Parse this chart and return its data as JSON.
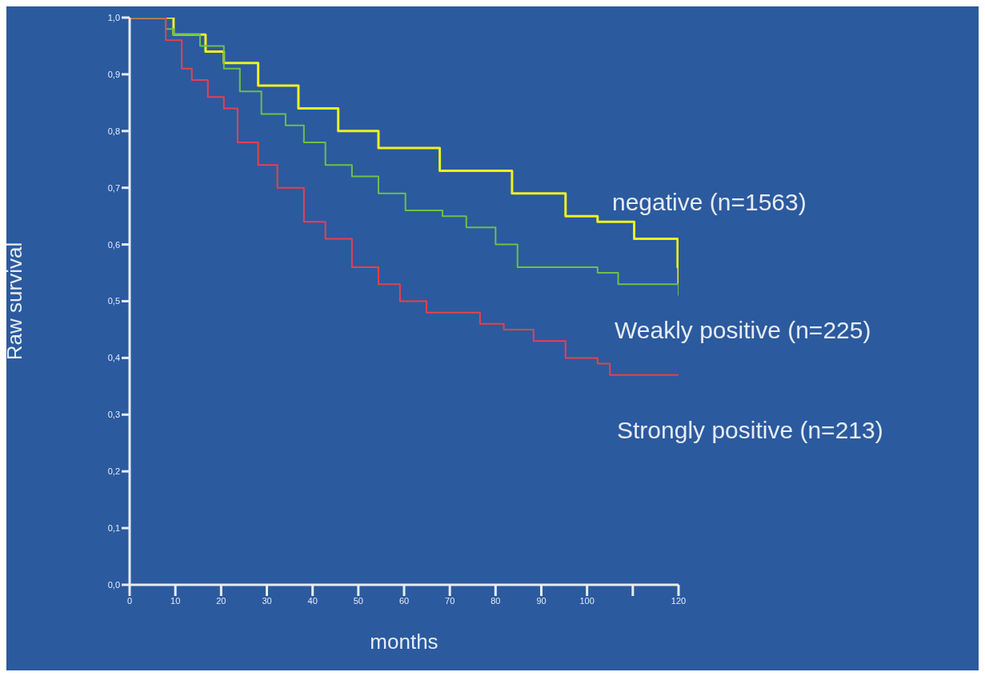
{
  "chart_data": {
    "type": "step",
    "xlabel": "months",
    "ylabel": "Raw survival",
    "xlim": [
      0,
      120
    ],
    "ylim": [
      0,
      1
    ],
    "xticks": [
      0,
      10,
      20,
      30,
      40,
      50,
      60,
      70,
      80,
      90,
      100,
      {
        "value": 110,
        "label": null
      },
      120
    ],
    "yticks": [
      {
        "value": 0,
        "label": "0,0"
      },
      {
        "value": 0.1,
        "label": "0,1"
      },
      {
        "value": 0.2,
        "label": "0,2"
      },
      {
        "value": 0.3,
        "label": "0,3"
      },
      {
        "value": 0.4,
        "label": "0,4"
      },
      {
        "value": 0.5,
        "label": "0,5"
      },
      {
        "value": 0.6,
        "label": "0,6"
      },
      {
        "value": 0.7,
        "label": "0,7"
      },
      {
        "value": 0.8,
        "label": "0,8"
      },
      {
        "value": 0.9,
        "label": "0,9"
      },
      {
        "value": 1,
        "label": "1,0"
      }
    ],
    "marker": "none",
    "line_style": "solid",
    "series": [
      {
        "name": "negative (n=1563)",
        "color": "#f0f020",
        "x": [
          0,
          9.6,
          16.6,
          20.6,
          28.1,
          36.9,
          45.6,
          54.4,
          55.6,
          67.8,
          83.6,
          95.3,
          102.3,
          110.3,
          119.8,
          120
        ],
        "values": [
          1,
          0.97,
          0.94,
          0.92,
          0.88,
          0.84,
          0.8,
          0.77,
          0.77,
          0.73,
          0.69,
          0.65,
          0.64,
          0.61,
          0.56,
          0.53
        ]
      },
      {
        "name": "Weakly positive (n=225)",
        "color": "#6cc04a",
        "x": [
          0,
          7.9,
          9.6,
          15.4,
          20.6,
          24.1,
          28.8,
          34.1,
          38.1,
          42.8,
          48.6,
          54.4,
          60.3,
          68.4,
          73.6,
          80,
          84.8,
          102.3,
          106.8,
          120
        ],
        "values": [
          1,
          0.98,
          0.97,
          0.95,
          0.91,
          0.87,
          0.83,
          0.81,
          0.78,
          0.74,
          0.72,
          0.69,
          0.66,
          0.65,
          0.63,
          0.6,
          0.56,
          0.55,
          0.53,
          0.51
        ]
      },
      {
        "name": "Strongly positive (n=213)",
        "color": "#e8404c",
        "x": [
          0,
          7.9,
          11.4,
          13.6,
          17.1,
          20.6,
          23.6,
          28.1,
          32.3,
          38.1,
          42.8,
          48.6,
          54.4,
          59.1,
          64.9,
          76.6,
          81.8,
          88.3,
          95.3,
          102.3,
          105,
          120
        ],
        "values": [
          1,
          0.96,
          0.91,
          0.89,
          0.86,
          0.84,
          0.78,
          0.74,
          0.7,
          0.64,
          0.61,
          0.56,
          0.53,
          0.5,
          0.48,
          0.46,
          0.45,
          0.43,
          0.4,
          0.39,
          0.37,
          0.37
        ]
      }
    ]
  }
}
